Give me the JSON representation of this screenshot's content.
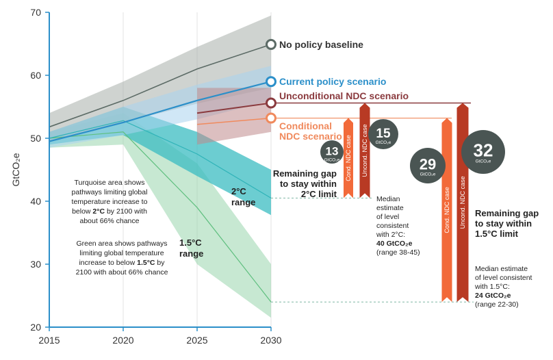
{
  "chart_data": {
    "type": "line",
    "ylabel": "GtCO₂e",
    "xlabel": "",
    "x": [
      2015,
      2020,
      2025,
      2030
    ],
    "xlim": [
      2015,
      2030
    ],
    "ylim": [
      20,
      70
    ],
    "yticks": [
      20,
      30,
      40,
      50,
      60,
      70
    ],
    "grid": "vertical",
    "series": [
      {
        "key": "baseline",
        "name": "No policy baseline",
        "color": "#5c6b66",
        "points": [
          [
            2015,
            51.8
          ],
          [
            2020,
            56.0
          ],
          [
            2025,
            61.0
          ],
          [
            2030,
            64.9
          ]
        ],
        "band": {
          "x": [
            2015,
            2020,
            2025,
            2030
          ],
          "low": [
            49.5,
            52.5,
            55.5,
            58.0
          ],
          "high": [
            54.0,
            59.0,
            64.5,
            69.5
          ]
        }
      },
      {
        "key": "current",
        "name": "Current policy scenario",
        "color": "#2b8fc9",
        "points": [
          [
            2015,
            49.5
          ],
          [
            2020,
            52.5
          ],
          [
            2025,
            56.0
          ],
          [
            2030,
            59.0
          ]
        ],
        "band": {
          "x": [
            2015,
            2020,
            2025,
            2030
          ],
          "low": [
            48.5,
            50.5,
            53.0,
            56.0
          ],
          "high": [
            51.0,
            55.0,
            58.5,
            61.5
          ]
        }
      },
      {
        "key": "uncond",
        "name": "Unconditional NDC scenario",
        "color": "#8a3a3e",
        "points": [
          [
            2025,
            54.0
          ],
          [
            2030,
            55.6
          ]
        ],
        "band": {
          "x": [
            2025,
            2030
          ],
          "low": [
            49.0,
            51.0
          ],
          "high": [
            58.0,
            58.0
          ]
        }
      },
      {
        "key": "cond",
        "name": "Conditional NDC scenario",
        "color": "#f08a5d",
        "points": [
          [
            2025,
            52.2
          ],
          [
            2030,
            53.2
          ]
        ]
      },
      {
        "key": "two_c",
        "name": "2°C range",
        "color": "#2fb3b8",
        "points": [
          [
            2015,
            50.0
          ],
          [
            2020,
            52.8
          ],
          [
            2025,
            47.5
          ],
          [
            2030,
            40.5
          ]
        ],
        "band": {
          "x": [
            2015,
            2020,
            2025,
            2030
          ],
          "low": [
            49.0,
            50.5,
            44.0,
            37.8
          ],
          "high": [
            51.0,
            55.0,
            51.0,
            45.0
          ]
        }
      },
      {
        "key": "one_five",
        "name": "1.5°C range",
        "color": "#5fbf7f",
        "points": [
          [
            2015,
            50.0
          ],
          [
            2020,
            51.0
          ],
          [
            2025,
            39.0
          ],
          [
            2030,
            24.0
          ]
        ],
        "band": {
          "x": [
            2015,
            2020,
            2025,
            2030
          ],
          "low": [
            48.5,
            49.0,
            30.0,
            21.5
          ],
          "high": [
            51.0,
            54.0,
            46.0,
            30.0
          ]
        }
      }
    ],
    "gap_bars": [
      {
        "group": "2C",
        "case": "conditional",
        "label": "Cond. NDC case",
        "gap": 13,
        "top": 53.2,
        "bottom": 40.5,
        "color": "#f26a3a"
      },
      {
        "group": "2C",
        "case": "unconditional",
        "label": "Uncond. NDC case",
        "gap": 15,
        "top": 55.6,
        "bottom": 40.5,
        "color": "#b83a24"
      },
      {
        "group": "1.5C",
        "case": "conditional",
        "label": "Cond. NDC case",
        "gap": 29,
        "top": 53.2,
        "bottom": 24.0,
        "color": "#f26a3a"
      },
      {
        "group": "1.5C",
        "case": "unconditional",
        "label": "Uncond. NDC case",
        "gap": 32,
        "top": 55.6,
        "bottom": 24.0,
        "color": "#b83a24"
      }
    ],
    "gap_unit": "GtCO₂e",
    "scenario_labels": {
      "baseline": "No policy baseline",
      "current": "Current policy scenario",
      "uncond": "Unconditional NDC scenario",
      "cond_1": "Conditional",
      "cond_2": "NDC scenario"
    },
    "range_labels": {
      "two_c_1": "2°C",
      "two_c_2": "range",
      "one_five_1": "1.5°C",
      "one_five_2": "range"
    },
    "notes": {
      "turquoise": [
        "Turquoise area shows",
        "pathways limiting global",
        "temperature increase to",
        "below ",
        "2°C",
        " by 2100 with",
        "about 66% chance"
      ],
      "green": [
        "Green area shows pathways",
        "limiting global temperature",
        "increase to below ",
        "1.5°C",
        " by",
        "2100 with about 66% chance"
      ]
    },
    "gap_labels": {
      "two_c": [
        "Remaining gap",
        "to stay within",
        "2°C limit"
      ],
      "one_five": [
        "Remaining gap",
        "to stay within",
        "1.5°C limit"
      ]
    },
    "medians": {
      "two_c": {
        "lines": [
          "Median",
          "estimate",
          "of level",
          "consistent",
          "with 2°C:"
        ],
        "value": "40 GtCO₂e",
        "range": "(range 38-45)",
        "y": 40.5
      },
      "one_five": {
        "lines": [
          "Median estimate",
          "of level consistent",
          "with 1.5°C:"
        ],
        "value": "24 GtCO₂e",
        "range": "(range 22-30)",
        "y": 24.0
      }
    },
    "colors": {
      "axis": "#2b8fc9",
      "bubble": "#4a5553",
      "two_c_value": "#2fb3b8",
      "one_five_value": "#5fbf7f"
    }
  }
}
